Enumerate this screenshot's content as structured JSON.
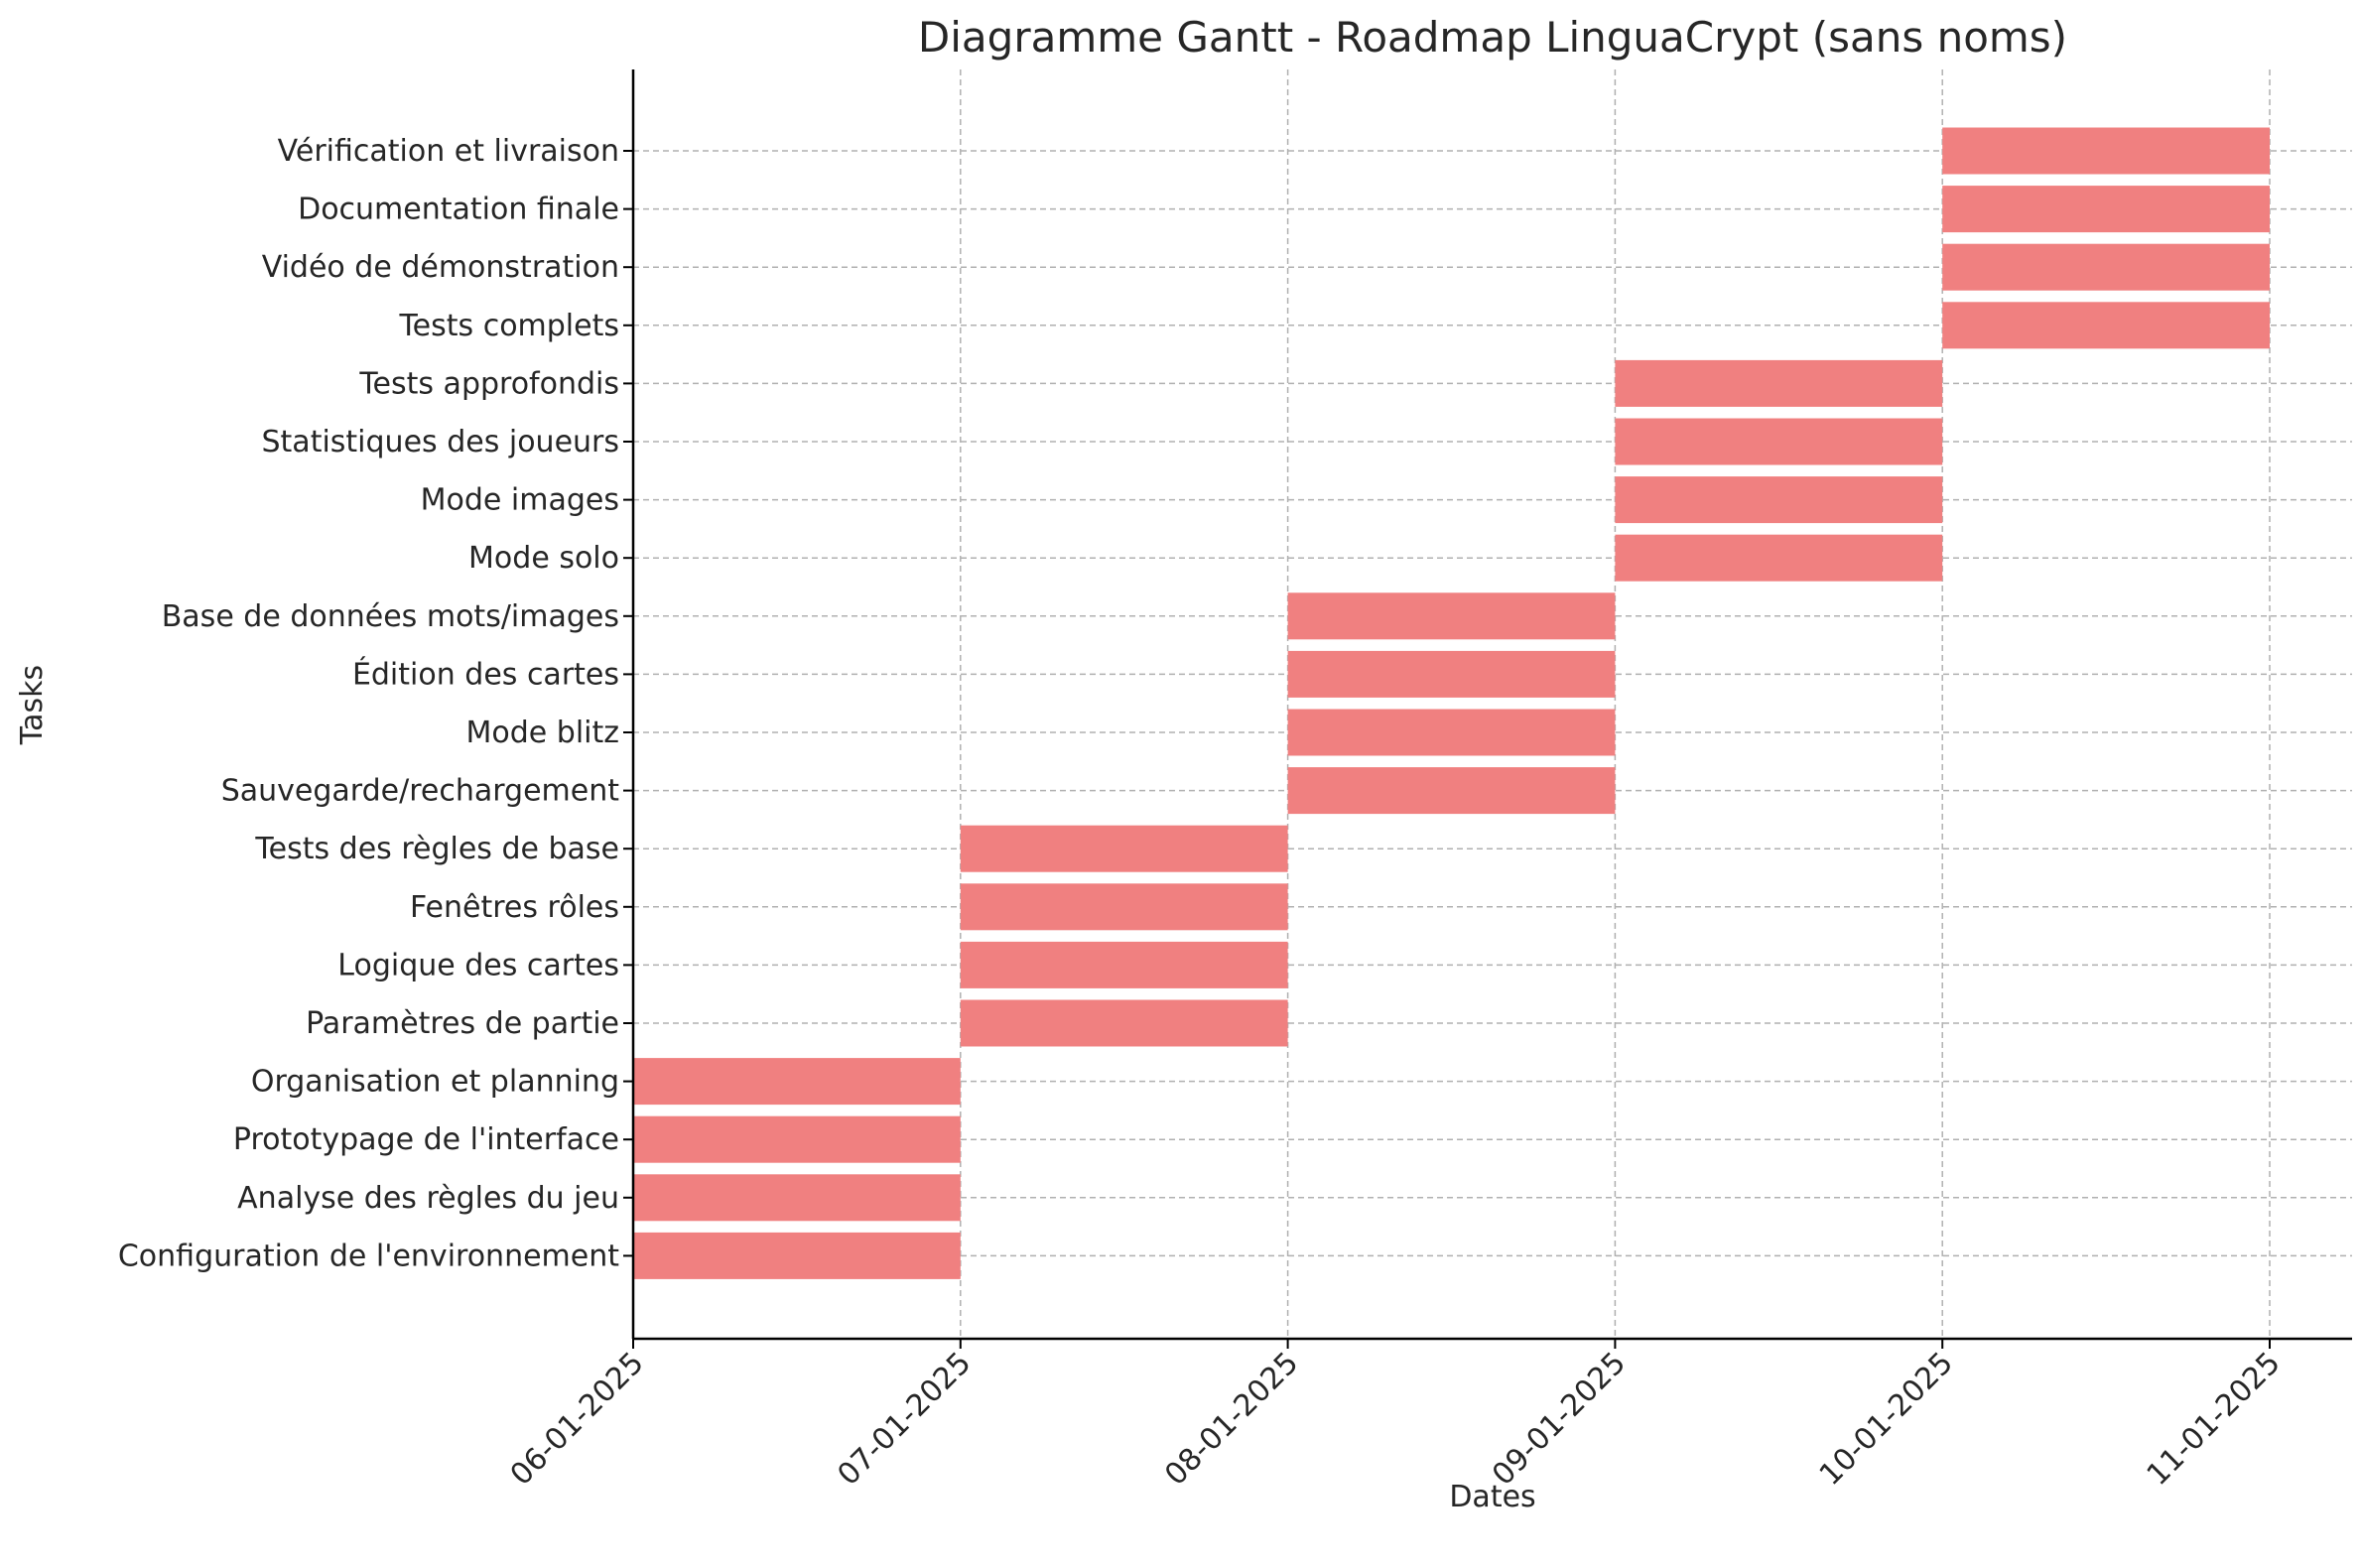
{
  "chart_data": {
    "type": "gantt",
    "title": "Diagramme Gantt - Roadmap LinguaCrypt (sans noms)",
    "xlabel": "Dates",
    "ylabel": "Tasks",
    "x_ticks": [
      "06-01-2025",
      "07-01-2025",
      "08-01-2025",
      "09-01-2025",
      "10-01-2025",
      "11-01-2025"
    ],
    "xlim": [
      "06-01-2025",
      "11-01-2025"
    ],
    "bar_color": "#f08080",
    "grid": true,
    "tasks": [
      {
        "name": "Configuration de l'environnement",
        "start": "06-01-2025",
        "end": "07-01-2025"
      },
      {
        "name": "Analyse des règles du jeu",
        "start": "06-01-2025",
        "end": "07-01-2025"
      },
      {
        "name": "Prototypage de l'interface",
        "start": "06-01-2025",
        "end": "07-01-2025"
      },
      {
        "name": "Organisation et planning",
        "start": "06-01-2025",
        "end": "07-01-2025"
      },
      {
        "name": "Paramètres de partie",
        "start": "07-01-2025",
        "end": "08-01-2025"
      },
      {
        "name": "Logique des cartes",
        "start": "07-01-2025",
        "end": "08-01-2025"
      },
      {
        "name": "Fenêtres rôles",
        "start": "07-01-2025",
        "end": "08-01-2025"
      },
      {
        "name": "Tests des règles de base",
        "start": "07-01-2025",
        "end": "08-01-2025"
      },
      {
        "name": "Sauvegarde/rechargement",
        "start": "08-01-2025",
        "end": "09-01-2025"
      },
      {
        "name": "Mode blitz",
        "start": "08-01-2025",
        "end": "09-01-2025"
      },
      {
        "name": "Édition des cartes",
        "start": "08-01-2025",
        "end": "09-01-2025"
      },
      {
        "name": "Base de données mots/images",
        "start": "08-01-2025",
        "end": "09-01-2025"
      },
      {
        "name": "Mode solo",
        "start": "09-01-2025",
        "end": "10-01-2025"
      },
      {
        "name": "Mode images",
        "start": "09-01-2025",
        "end": "10-01-2025"
      },
      {
        "name": "Statistiques des joueurs",
        "start": "09-01-2025",
        "end": "10-01-2025"
      },
      {
        "name": "Tests approfondis",
        "start": "09-01-2025",
        "end": "10-01-2025"
      },
      {
        "name": "Tests complets",
        "start": "10-01-2025",
        "end": "11-01-2025"
      },
      {
        "name": "Vidéo de démonstration",
        "start": "10-01-2025",
        "end": "11-01-2025"
      },
      {
        "name": "Documentation finale",
        "start": "10-01-2025",
        "end": "11-01-2025"
      },
      {
        "name": "Vérification et livraison",
        "start": "10-01-2025",
        "end": "11-01-2025"
      }
    ]
  }
}
